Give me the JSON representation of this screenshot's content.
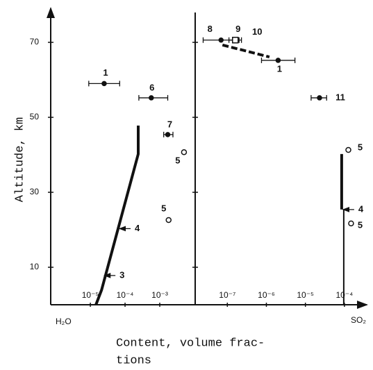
{
  "chart_data": {
    "type": "profile",
    "ylabel": "Altitude, km",
    "xlabel": [
      "Content, volume frac-",
      "tions"
    ],
    "ylim": [
      0,
      80
    ],
    "yticks": [
      10,
      30,
      50,
      70
    ],
    "panels": [
      {
        "name": "H₂O",
        "xscale": "log",
        "xlim": [
          7.2e-07,
          0.0105
        ],
        "xticks": [
          {
            "value": 1e-05,
            "label": "10⁻⁵"
          },
          {
            "value": 0.0001,
            "label": "10⁻⁴"
          },
          {
            "value": 0.001,
            "label": "10⁻³"
          }
        ],
        "points": [
          {
            "label": "1",
            "marker": "dot",
            "x": 2.5e-05,
            "y": 59,
            "xerr": [
              9e-06,
              7e-05
            ]
          },
          {
            "label": "6",
            "marker": "dot",
            "x": 0.00057,
            "y": 55.2,
            "xerr": [
              0.00025,
              0.0017
            ]
          },
          {
            "label": "7",
            "marker": "dot",
            "x": 0.0017,
            "y": 45.4,
            "xerr": [
              0.0013,
              0.0024
            ]
          },
          {
            "label": "5",
            "marker": "circle",
            "x": 0.005,
            "y": 40.7
          },
          {
            "label": "5",
            "marker": "circle",
            "x": 0.0018,
            "y": 22.6
          }
        ],
        "profiles": [
          {
            "style": "thick",
            "x": [
              1.45e-05,
              2.1e-05,
              0.00024,
              0.00024
            ],
            "y": [
              0,
              3.9,
              40.2,
              47.8
            ]
          }
        ],
        "arrows": [
          {
            "label": "4",
            "x": 6.3e-05,
            "y": 20.3
          },
          {
            "label": "3",
            "x": 2.3e-05,
            "y": 7.8
          }
        ]
      },
      {
        "name": "SO₂",
        "xscale": "log",
        "xlim": [
          1.5e-08,
          0.00033
        ],
        "xticks": [
          {
            "value": 1e-07,
            "label": "10⁻⁷"
          },
          {
            "value": 1e-06,
            "label": "10⁻⁶"
          },
          {
            "value": 1e-05,
            "label": "10⁻⁵"
          },
          {
            "value": 0.0001,
            "label": "10⁻⁴"
          }
        ],
        "points": [
          {
            "label": "8",
            "marker": "dot",
            "x": 6.9e-08,
            "y": 70.6,
            "xerr": [
              2.4e-08,
              2e-07
            ]
          },
          {
            "label": "9",
            "marker": "square",
            "x": 1.6e-07,
            "y": 70.6,
            "xerr": [
              1.1e-07,
              2.3e-07
            ]
          },
          {
            "label": "1",
            "marker": "dot",
            "x": 2e-06,
            "y": 65.2,
            "xerr": [
              7.5e-07,
              5.4e-06
            ]
          },
          {
            "label": "11",
            "marker": "dot",
            "x": 2.3e-05,
            "y": 55.2,
            "xerr": [
              1.4e-05,
              3.5e-05
            ]
          },
          {
            "label": "5",
            "marker": "circle",
            "x": 0.000126,
            "y": 41.3
          },
          {
            "label": "5",
            "marker": "circle",
            "x": 0.000148,
            "y": 21.7
          }
        ],
        "profiles": [
          {
            "label": "10",
            "style": "dashed",
            "x": [
              7.5e-08,
              1.2e-06
            ],
            "y": [
              69.3,
              66.1
            ]
          },
          {
            "style": "thick",
            "x": [
              8.5e-05,
              8.5e-05
            ],
            "y": [
              25.4,
              40.2
            ]
          },
          {
            "style": "thin",
            "x": [
              9.6e-05,
              9.6e-05
            ],
            "y": [
              0,
              25.4
            ]
          }
        ],
        "arrows": [
          {
            "label": "4",
            "x": 8.5e-05,
            "y": 25.4
          }
        ]
      }
    ]
  }
}
